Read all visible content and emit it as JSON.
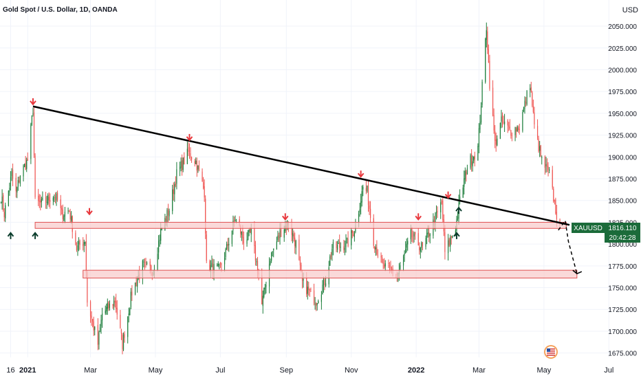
{
  "header": {
    "title": "Gold Spot / U.S. Dollar, 1D, OANDA",
    "currency": "USD"
  },
  "colors": {
    "up": "#26a69a",
    "up_dark": "#1b7d3a",
    "down": "#ef5350",
    "zone_fill": "#f8cccc",
    "zone_stroke": "#e05050",
    "trendline": "#000000",
    "arrow_down": "#e8383d",
    "arrow_up": "#0b3d2c",
    "price_tag": "#1b6b3a",
    "axis_text": "#131722",
    "grid": "#f0f3fa"
  },
  "chart_data": {
    "type": "candlestick",
    "symbol": "XAUUSD",
    "title": "Gold Spot / U.S. Dollar, 1D, OANDA",
    "ylim": [
      1670,
      2080
    ],
    "y_ticks": [
      2050,
      2025,
      2000,
      1975,
      1950,
      1925,
      1900,
      1875,
      1850,
      1825,
      1800,
      1775,
      1750,
      1725,
      1700,
      1675
    ],
    "y_tick_labels": [
      "2050.000",
      "2025.000",
      "2000.000",
      "1975.000",
      "1950.000",
      "1925.000",
      "1900.000",
      "1875.000",
      "1850.000",
      "1825.000",
      "1800.000",
      "1775.000",
      "1750.000",
      "1725.000",
      "1700.000",
      "1675.000"
    ],
    "x_start": "2020-12-06",
    "x_end": "2022-07-06",
    "x_ticks": [
      {
        "date": "2020-12-16",
        "label": "16",
        "bold": false
      },
      {
        "date": "2021-01-01",
        "label": "2021",
        "bold": true
      },
      {
        "date": "2021-03-01",
        "label": "Mar",
        "bold": false
      },
      {
        "date": "2021-05-01",
        "label": "May",
        "bold": false
      },
      {
        "date": "2021-07-01",
        "label": "Jul",
        "bold": false
      },
      {
        "date": "2021-09-01",
        "label": "Sep",
        "bold": false
      },
      {
        "date": "2021-11-01",
        "label": "Nov",
        "bold": false
      },
      {
        "date": "2022-01-01",
        "label": "2022",
        "bold": true
      },
      {
        "date": "2022-03-01",
        "label": "Mar",
        "bold": false
      },
      {
        "date": "2022-05-01",
        "label": "May",
        "bold": false
      },
      {
        "date": "2022-07-01",
        "label": "Jul",
        "bold": false
      }
    ],
    "price_path": [
      [
        "2020-12-06",
        1862
      ],
      [
        "2020-12-10",
        1835
      ],
      [
        "2020-12-17",
        1880
      ],
      [
        "2020-12-21",
        1858
      ],
      [
        "2020-12-25",
        1880
      ],
      [
        "2021-01-01",
        1896
      ],
      [
        "2021-01-06",
        1955
      ],
      [
        "2021-01-08",
        1848
      ],
      [
        "2021-01-14",
        1846
      ],
      [
        "2021-01-25",
        1856
      ],
      [
        "2021-01-29",
        1850
      ],
      [
        "2021-02-02",
        1834
      ],
      [
        "2021-02-09",
        1839
      ],
      [
        "2021-02-16",
        1795
      ],
      [
        "2021-02-24",
        1805
      ],
      [
        "2021-02-26",
        1734
      ],
      [
        "2021-03-08",
        1685
      ],
      [
        "2021-03-12",
        1720
      ],
      [
        "2021-03-24",
        1735
      ],
      [
        "2021-03-31",
        1685
      ],
      [
        "2021-04-09",
        1745
      ],
      [
        "2021-04-19",
        1775
      ],
      [
        "2021-04-29",
        1770
      ],
      [
        "2021-05-06",
        1815
      ],
      [
        "2021-05-14",
        1840
      ],
      [
        "2021-05-21",
        1880
      ],
      [
        "2021-06-01",
        1905
      ],
      [
        "2021-06-08",
        1895
      ],
      [
        "2021-06-16",
        1860
      ],
      [
        "2021-06-18",
        1775
      ],
      [
        "2021-06-30",
        1770
      ],
      [
        "2021-07-07",
        1795
      ],
      [
        "2021-07-15",
        1830
      ],
      [
        "2021-07-23",
        1805
      ],
      [
        "2021-07-30",
        1812
      ],
      [
        "2021-08-06",
        1765
      ],
      [
        "2021-08-09",
        1730
      ],
      [
        "2021-08-17",
        1785
      ],
      [
        "2021-08-27",
        1815
      ],
      [
        "2021-09-03",
        1825
      ],
      [
        "2021-09-10",
        1800
      ],
      [
        "2021-09-16",
        1755
      ],
      [
        "2021-09-29",
        1735
      ],
      [
        "2021-10-08",
        1760
      ],
      [
        "2021-10-14",
        1795
      ],
      [
        "2021-10-28",
        1800
      ],
      [
        "2021-11-05",
        1820
      ],
      [
        "2021-11-12",
        1865
      ],
      [
        "2021-11-16",
        1860
      ],
      [
        "2021-11-22",
        1805
      ],
      [
        "2021-11-30",
        1775
      ],
      [
        "2021-12-15",
        1765
      ],
      [
        "2021-12-27",
        1810
      ],
      [
        "2022-01-07",
        1795
      ],
      [
        "2022-01-14",
        1815
      ],
      [
        "2022-01-25",
        1848
      ],
      [
        "2022-01-28",
        1790
      ],
      [
        "2022-02-07",
        1820
      ],
      [
        "2022-02-11",
        1850
      ],
      [
        "2022-02-18",
        1890
      ],
      [
        "2022-02-28",
        1910
      ],
      [
        "2022-03-08",
        2050
      ],
      [
        "2022-03-11",
        1985
      ],
      [
        "2022-03-16",
        1915
      ],
      [
        "2022-03-22",
        1940
      ],
      [
        "2022-03-31",
        1930
      ],
      [
        "2022-04-08",
        1935
      ],
      [
        "2022-04-18",
        1985
      ],
      [
        "2022-04-22",
        1935
      ],
      [
        "2022-04-29",
        1895
      ],
      [
        "2022-05-06",
        1880
      ],
      [
        "2022-05-12",
        1840
      ],
      [
        "2022-05-16",
        1815
      ]
    ],
    "trendline": {
      "from": [
        "2021-01-06",
        1958
      ],
      "to": [
        "2022-05-25",
        1822
      ]
    },
    "zones": [
      {
        "x0": "2021-01-08",
        "x1": "2022-05-22",
        "y0": 1818,
        "y1": 1825
      },
      {
        "x0": "2021-02-22",
        "x1": "2022-06-01",
        "y0": 1761,
        "y1": 1770
      }
    ],
    "arrows_down": [
      [
        "2021-01-06",
        1961
      ],
      [
        "2021-02-28",
        1835
      ],
      [
        "2021-06-02",
        1920
      ],
      [
        "2021-08-31",
        1829
      ],
      [
        "2021-11-10",
        1878
      ],
      [
        "2022-01-03",
        1829
      ],
      [
        "2022-01-31",
        1854
      ]
    ],
    "arrows_up": [
      [
        "2020-12-16",
        1812
      ],
      [
        "2021-01-08",
        1812
      ],
      [
        "2022-02-08",
        1812
      ],
      [
        "2022-02-10",
        1841
      ]
    ],
    "projection": {
      "from": [
        "2022-05-21",
        1827
      ],
      "mid": [
        "2022-05-24",
        1803
      ],
      "to": [
        "2022-06-01",
        1766
      ]
    },
    "last_price": {
      "label": "XAUUSD",
      "value": "1816.110",
      "countdown": "20:42:28",
      "price": 1816.11
    }
  }
}
